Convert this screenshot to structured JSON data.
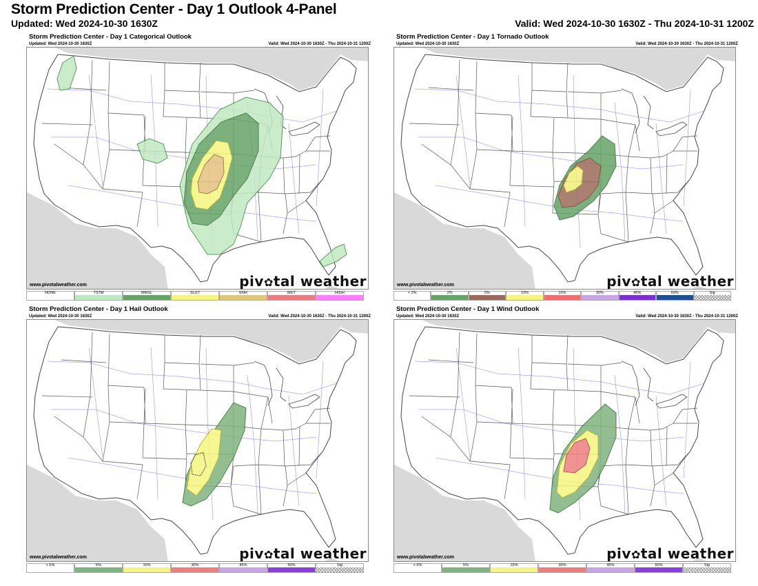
{
  "header": {
    "title": "Storm Prediction Center - Day 1 Outlook 4-Panel",
    "updated": "Updated: Wed 2024-10-30 1630Z",
    "valid": "Valid: Wed 2024-10-30 1630Z - Thu 2024-10-31 1200Z"
  },
  "panels": [
    {
      "title": "Storm Prediction Center - Day 1 Categorical Outlook",
      "updated": "Updated: Wed 2024-10-30 1630Z",
      "valid": "Valid: Wed 2024-10-30 1630Z - Thu 2024-10-31 1200Z",
      "credit": "www.pivotalweather.com",
      "legend": [
        {
          "label": "NONE",
          "color": "#ffffff"
        },
        {
          "label": "TSTM",
          "color": "#c1e9c1"
        },
        {
          "label": "MRGL",
          "color": "#66a366"
        },
        {
          "label": "SLGT",
          "color": "#f6f67f"
        },
        {
          "label": "ENH",
          "color": "#e6c27f"
        },
        {
          "label": "MDT",
          "color": "#e67f7f"
        },
        {
          "label": "HIGH",
          "color": "#ff7fff"
        }
      ]
    },
    {
      "title": "Storm Prediction Center - Day 1 Tornado Outlook",
      "updated": "Updated: Wed 2024-10-30 1630Z",
      "valid": "Valid: Wed 2024-10-30 1630Z - Thu 2024-10-31 1200Z",
      "credit": "www.pivotalweather.com",
      "legend": [
        {
          "label": "< 2%",
          "color": "#ffffff"
        },
        {
          "label": "2%",
          "color": "#66a366"
        },
        {
          "label": "5%",
          "color": "#9c6a5a"
        },
        {
          "label": "10%",
          "color": "#f6f67f"
        },
        {
          "label": "15%",
          "color": "#ef6f6f"
        },
        {
          "label": "30%",
          "color": "#c9a5e3"
        },
        {
          "label": "45%",
          "color": "#7b2fd0"
        },
        {
          "label": "60%",
          "color": "#1f4f8f"
        },
        {
          "label": "Sig",
          "color": "hatch"
        }
      ]
    },
    {
      "title": "Storm Prediction Center - Day 1 Hail Outlook",
      "updated": "Updated: Wed 2024-10-30 1630Z",
      "valid": "Valid: Wed 2024-10-30 1630Z - Thu 2024-10-31 1200Z",
      "credit": "www.pivotalweather.com",
      "legend": [
        {
          "label": "< 5%",
          "color": "#ffffff"
        },
        {
          "label": "5%",
          "color": "#7fb37f"
        },
        {
          "label": "15%",
          "color": "#f6f67f"
        },
        {
          "label": "30%",
          "color": "#ef7f7f"
        },
        {
          "label": "45%",
          "color": "#c9a5e3"
        },
        {
          "label": "60%",
          "color": "#8a3fe0"
        },
        {
          "label": "Sig",
          "color": "hatch"
        }
      ]
    },
    {
      "title": "Storm Prediction Center - Day 1 Wind Outlook",
      "updated": "Updated: Wed 2024-10-30 1630Z",
      "valid": "Valid: Wed 2024-10-30 1630Z - Thu 2024-10-31 1200Z",
      "credit": "www.pivotalweather.com",
      "legend": [
        {
          "label": "< 5%",
          "color": "#ffffff"
        },
        {
          "label": "5%",
          "color": "#7fb37f"
        },
        {
          "label": "15%",
          "color": "#f6f67f"
        },
        {
          "label": "30%",
          "color": "#ef7f7f"
        },
        {
          "label": "45%",
          "color": "#c9a5e3"
        },
        {
          "label": "60%",
          "color": "#8a3fe0"
        },
        {
          "label": "Sig",
          "color": "hatch"
        }
      ]
    }
  ],
  "logo": {
    "part1": "piv",
    "part2": "tal weather",
    "icon": "gear-icon"
  },
  "colors": {
    "land_outside": "#d9d9d9",
    "state_border": "#555555",
    "county_border": "#cfcfcf",
    "road": "#5a5aff"
  }
}
